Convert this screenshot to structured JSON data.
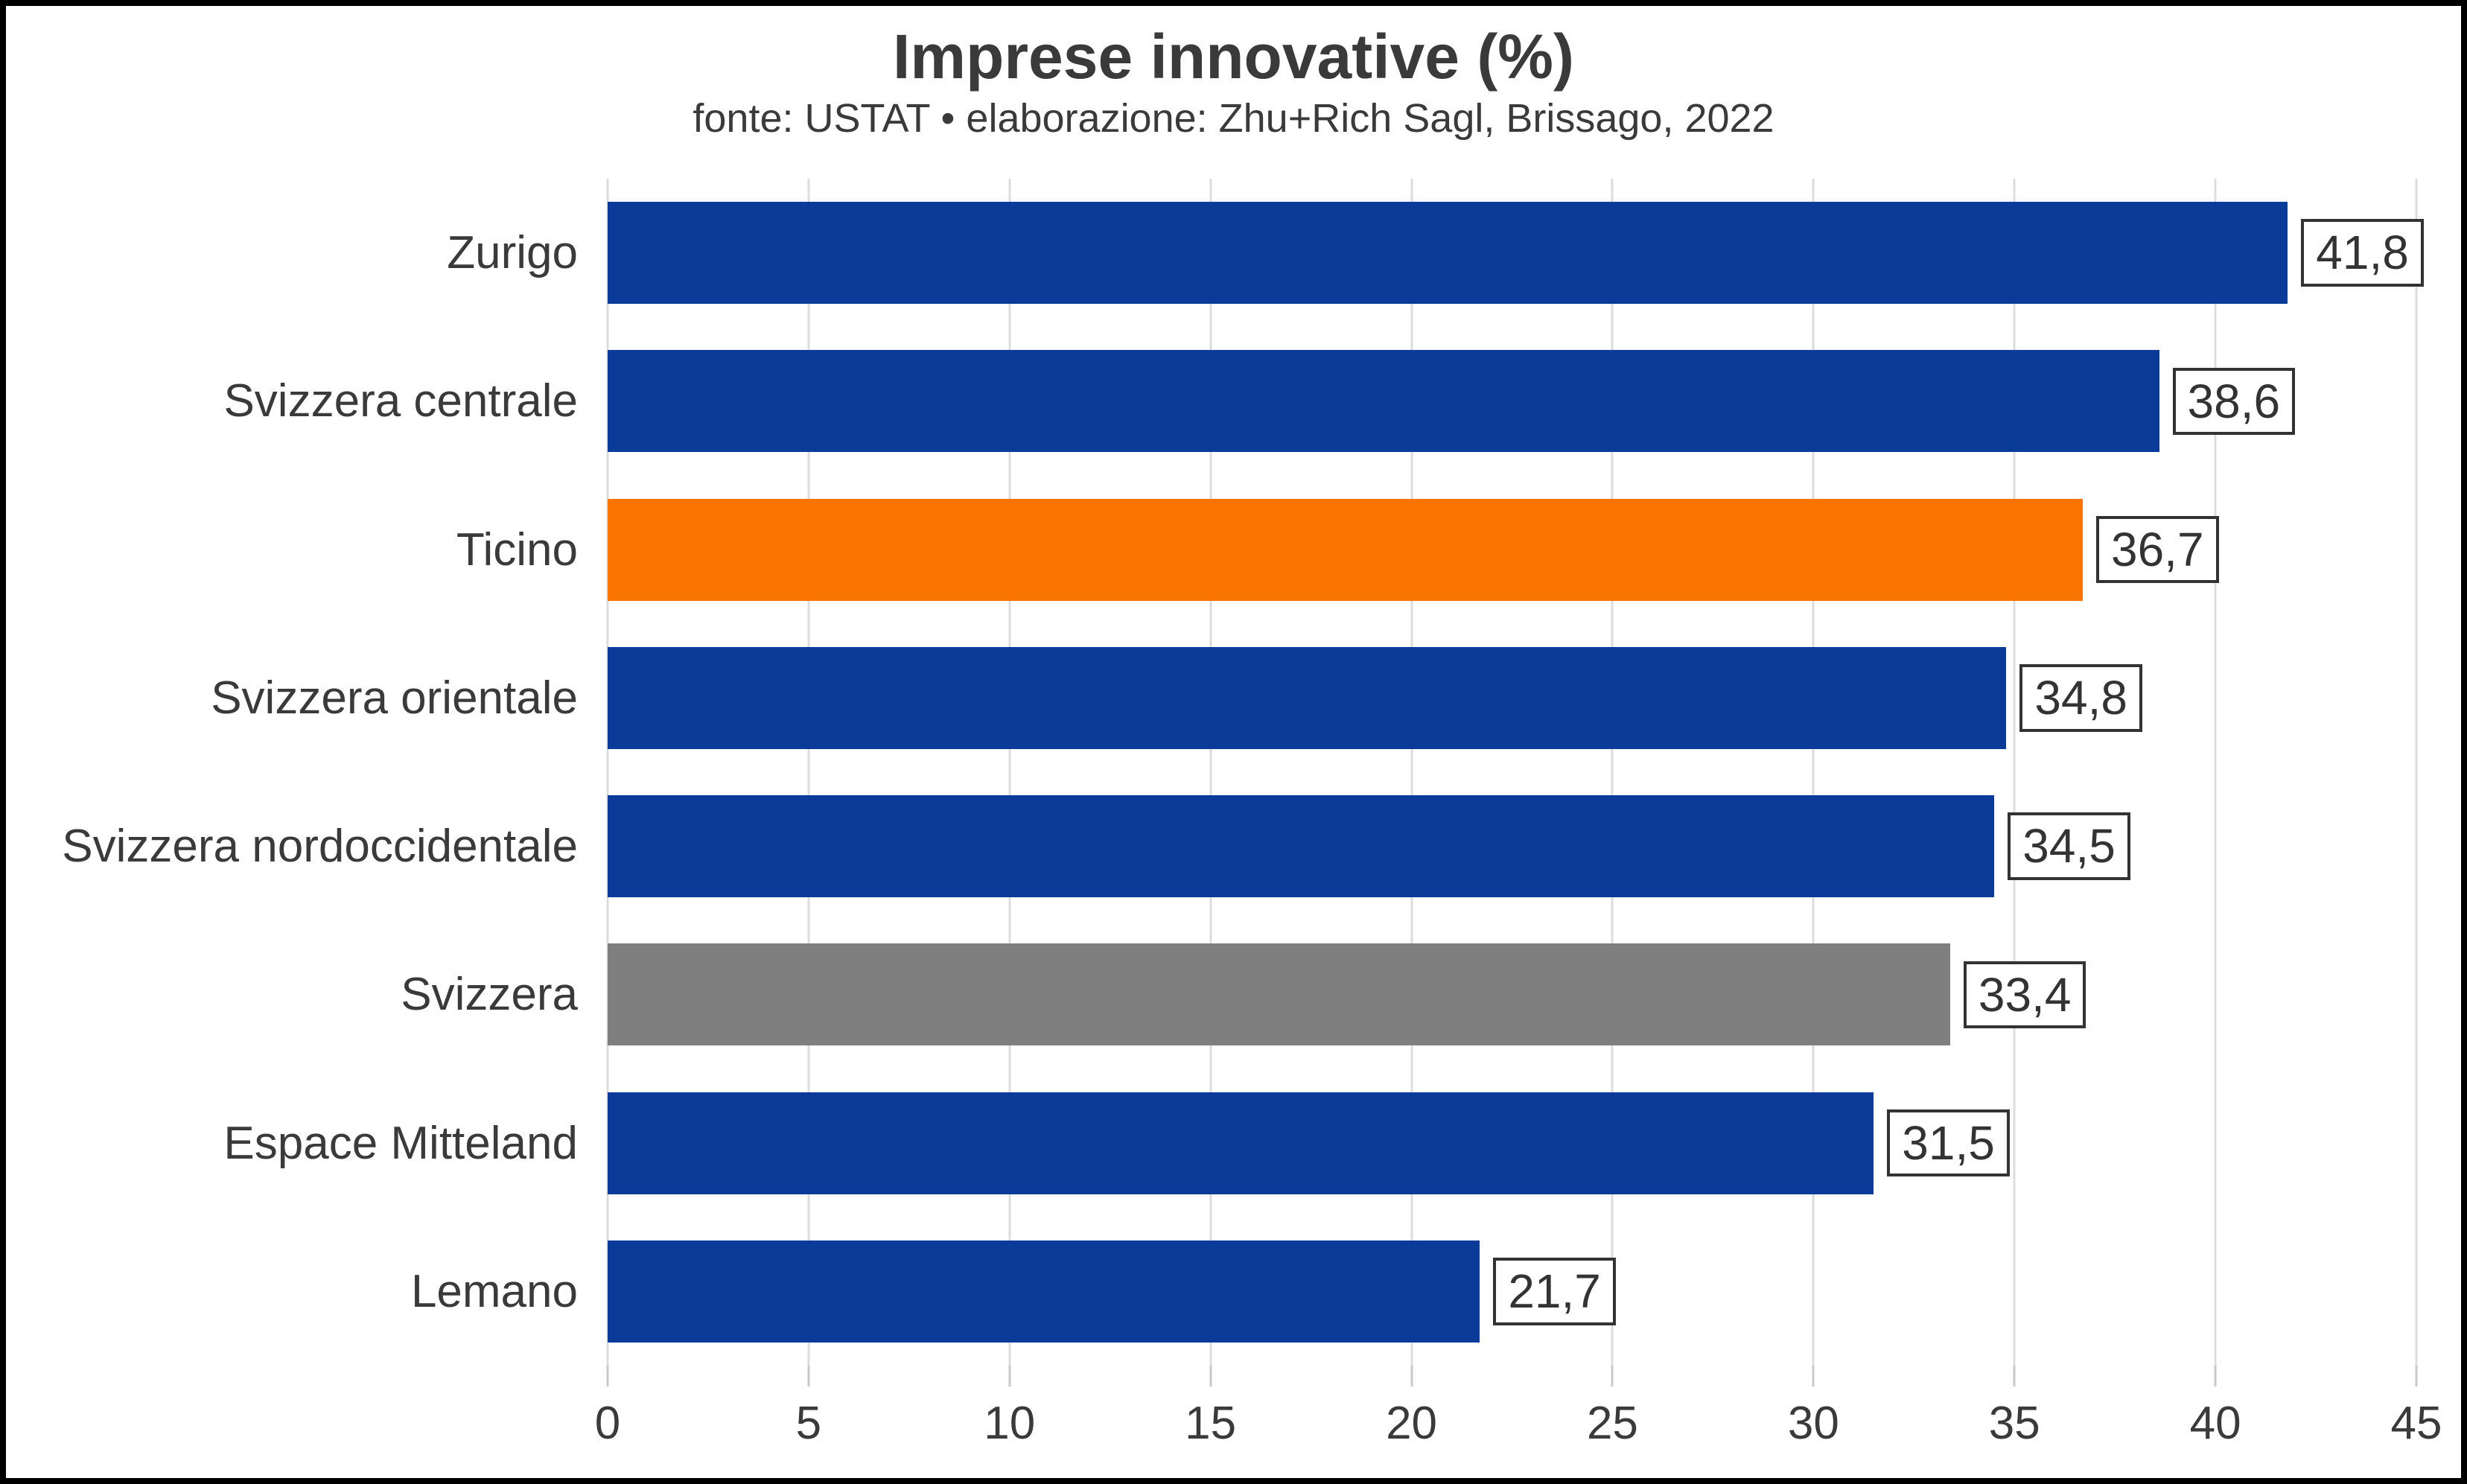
{
  "header": {
    "title": "Imprese innovative (%)",
    "subtitle": "fonte: USTAT • elaborazione: Zhu+Rich Sagl, Brissago, 2022"
  },
  "chart_data": {
    "type": "bar",
    "orientation": "horizontal",
    "title": "Imprese innovative (%)",
    "subtitle": "fonte: USTAT • elaborazione: Zhu+Rich Sagl, Brissago, 2022",
    "categories": [
      "Zurigo",
      "Svizzera centrale",
      "Ticino",
      "Svizzera orientale",
      "Svizzera nordoccidentale",
      "Svizzera",
      "Espace Mitteland",
      "Lemano"
    ],
    "values": [
      41.8,
      38.6,
      36.7,
      34.8,
      34.5,
      33.4,
      31.5,
      21.7
    ],
    "value_labels": [
      "41,8",
      "38,6",
      "36,7",
      "34,8",
      "34,5",
      "33,4",
      "31,5",
      "21,7"
    ],
    "bar_colors": [
      "#0a3b98",
      "#0a3b98",
      "#fc7400",
      "#0a3b98",
      "#0a3b98",
      "#7f7f7f",
      "#0a3b98",
      "#0a3b98"
    ],
    "xlabel": "",
    "ylabel": "",
    "xlim": [
      0,
      45
    ],
    "xticks": [
      0,
      5,
      10,
      15,
      20,
      25,
      30,
      35,
      40,
      45
    ],
    "xtick_labels": [
      "0",
      "5",
      "10",
      "15",
      "20",
      "25",
      "30",
      "35",
      "40",
      "45"
    ],
    "grid": "vertical-on",
    "legend": "none",
    "colors": {
      "default_bar": "#0a3b98",
      "highlight_bar": "#fc7400",
      "national_bar": "#7f7f7f",
      "gridline": "#dcdcdc",
      "tick": "#c9c9c9",
      "text": "#3a3a3a",
      "value_box_border": "#333333",
      "frame_border": "#000000"
    }
  }
}
